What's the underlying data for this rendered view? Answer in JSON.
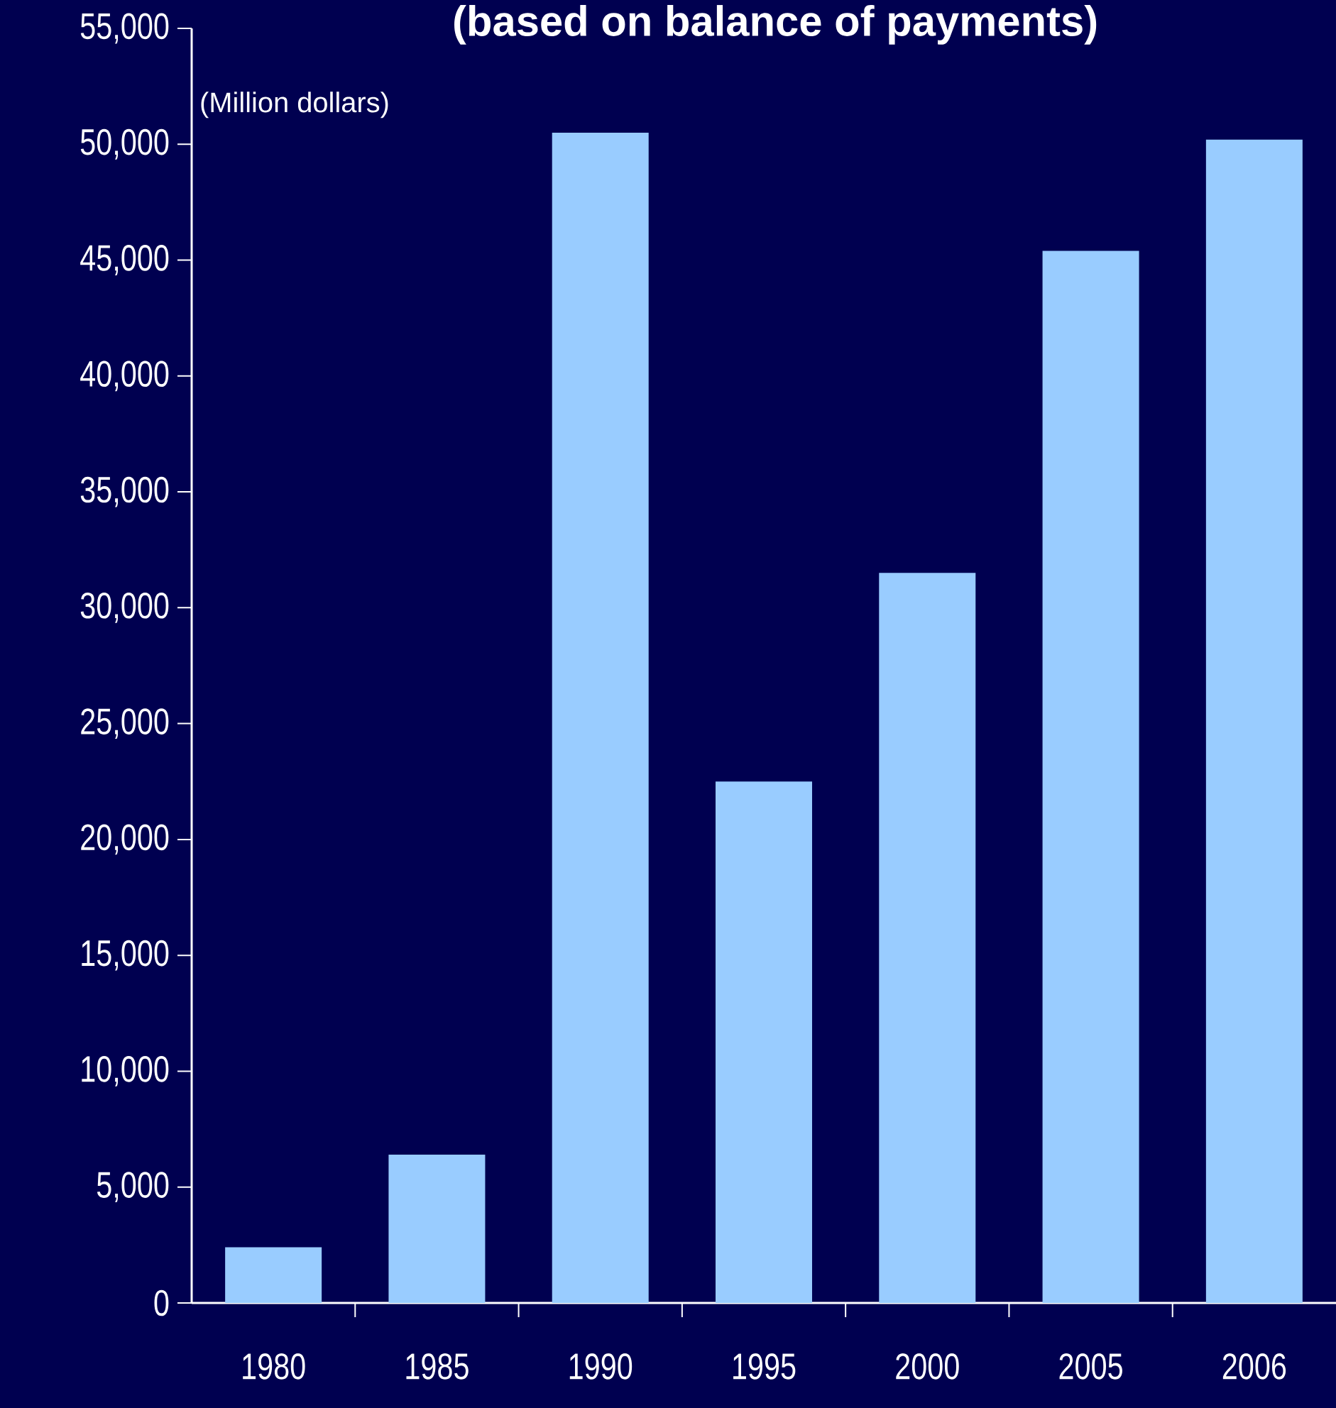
{
  "chart_data": {
    "type": "bar",
    "title": "(based on balance of payments)",
    "ylabel": "(Million dollars)",
    "categories": [
      "1980",
      "1985",
      "1990",
      "1995",
      "2000",
      "2005",
      "2006"
    ],
    "values": [
      2400,
      6400,
      50500,
      22500,
      31500,
      45400,
      50200
    ],
    "color": "#99ccff",
    "ylim": [
      0,
      55000
    ],
    "yticks": [
      {
        "value": 0,
        "label": "0"
      },
      {
        "value": 5000,
        "label": "5,000"
      },
      {
        "value": 10000,
        "label": "10,000"
      },
      {
        "value": 15000,
        "label": "15,000"
      },
      {
        "value": 20000,
        "label": "20,000"
      },
      {
        "value": 25000,
        "label": "25,000"
      },
      {
        "value": 30000,
        "label": "30,000"
      },
      {
        "value": 35000,
        "label": "35,000"
      },
      {
        "value": 40000,
        "label": "40,000"
      },
      {
        "value": 45000,
        "label": "45,000"
      },
      {
        "value": 50000,
        "label": "50,000"
      },
      {
        "value": 55000,
        "label": "55,000"
      }
    ],
    "grid": false
  }
}
